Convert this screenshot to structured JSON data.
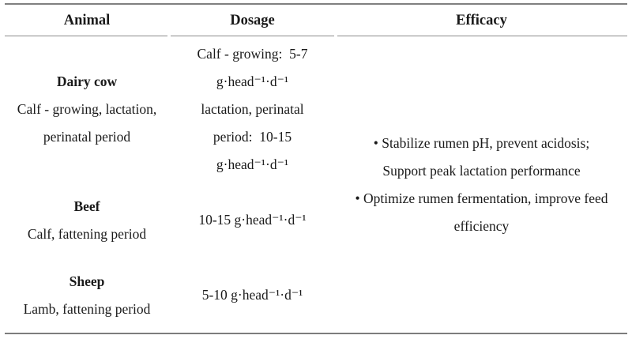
{
  "page": {
    "background": "#ffffff",
    "text_color": "#1a1a1a",
    "thick_rule_color": "#808080",
    "thin_rule_color": "#8c8c8c"
  },
  "table": {
    "headers": [
      "Animal",
      "Dosage",
      "Efficacy"
    ],
    "rows": [
      {
        "animal_name": "Dairy cow",
        "animal_periods": "Calf - growing, lactation,\nperinatal period",
        "dosage": "Calf - growing:  5-7\ng·head⁻¹·d⁻¹\nlactation, perinatal\nperiod:  10-15\ng·head⁻¹·d⁻¹"
      },
      {
        "animal_name": "Beef",
        "animal_periods": "Calf, fattening period",
        "dosage": "10-15 g·head⁻¹·d⁻¹"
      },
      {
        "animal_name": "Sheep",
        "animal_periods": "Lamb, fattening period",
        "dosage": "5-10 g·head⁻¹·d⁻¹"
      }
    ],
    "efficacy_text": "• Stabilize rumen pH, prevent acidosis;\nSupport peak lactation performance\n• Optimize rumen fermentation, improve feed\nefficiency"
  }
}
